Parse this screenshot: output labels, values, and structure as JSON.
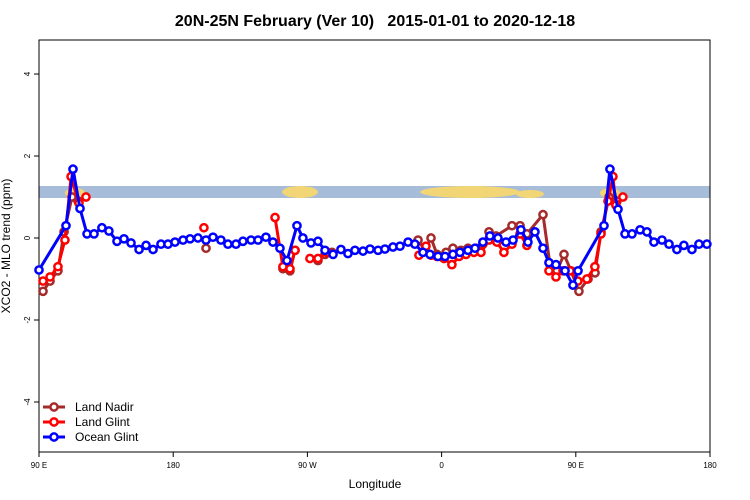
{
  "chart_data": {
    "type": "line",
    "title": "20N-25N February (Ver 10)   2015-01-01 to 2020-12-18",
    "x_label": "Longitude",
    "y_label": "XCO2 - MLO trend (ppm)",
    "xlim": [
      90,
      540
    ],
    "ylim": [
      -5.22,
      4.83
    ],
    "xticks": [
      {
        "value": 90,
        "label": "90 E"
      },
      180,
      {
        "value": 270,
        "label": "90 W"
      },
      {
        "value": 360,
        "label": "0"
      },
      {
        "value": 450,
        "label": "90 E"
      },
      {
        "value": 540,
        "label": "180"
      }
    ],
    "yticks": [
      4,
      2,
      0,
      -2,
      -4
    ],
    "legend": "bottom-left",
    "series": [
      {
        "name": "Land Nadir",
        "color": "#a52a2a",
        "x": [
          92.7,
          97.4,
          102.7,
          106.8,
          112.1,
          116.2,
          null,
          202,
          null,
          253.6,
          258.3,
          261.7,
          null,
          277.1,
          281.8,
          286.5,
          null,
          344.2,
          348.9,
          352.9,
          356.9,
          363,
          367.6,
          373,
          377.7,
          383,
          387.7,
          391.8,
          396.5,
          407.2,
          412.6,
          417.2,
          428,
          432.7,
          437.4,
          442.1,
          446.8,
          452.1,
          458.2,
          462.9,
          466.9,
          472.3,
          477.6
        ],
        "values": [
          -1.3,
          -1.05,
          -0.8,
          0.15,
          1.0,
          0.9,
          null,
          -0.25,
          null,
          -0.75,
          -0.8,
          -0.3,
          null,
          -0.55,
          -0.4,
          -0.35,
          null,
          -0.05,
          -0.3,
          0,
          -0.4,
          -0.35,
          -0.25,
          -0.3,
          -0.25,
          -0.25,
          -0.15,
          0.15,
          0.05,
          0.3,
          0.3,
          0.1,
          0.57,
          -0.65,
          -0.8,
          -0.4,
          -0.8,
          -1.3,
          -1.0,
          -0.85,
          0.15,
          1.0,
          0.9
        ]
      },
      {
        "name": "Land Glint",
        "color": "#ff0000",
        "x": [
          92.7,
          97.4,
          102.7,
          107.4,
          111.5,
          116.8,
          121.5,
          null,
          200.6,
          null,
          248.3,
          253.6,
          258.3,
          261.7,
          null,
          271.7,
          277.1,
          283.1,
          null,
          344.8,
          349.5,
          352.9,
          356.9,
          361.6,
          366.9,
          371.7,
          376.4,
          381.7,
          386.4,
          391.8,
          397.1,
          401.8,
          407.2,
          412.6,
          417.2,
          null,
          432,
          436.7,
          441.4,
          446.1,
          451.4,
          457.4,
          462.8,
          466.9,
          471.6,
          474.9,
          476.9,
          481.6
        ],
        "values": [
          -1.05,
          -0.95,
          -0.7,
          -0.05,
          1.5,
          0.85,
          1.0,
          null,
          0.25,
          null,
          0.5,
          -0.7,
          -0.75,
          -0.3,
          null,
          -0.5,
          -0.5,
          -0.35,
          null,
          -0.42,
          -0.2,
          -0.42,
          -0.45,
          -0.5,
          -0.65,
          -0.45,
          -0.4,
          -0.35,
          -0.35,
          -0.05,
          -0.1,
          -0.35,
          -0.15,
          0.1,
          -0.18,
          null,
          -0.8,
          -0.95,
          -0.8,
          -0.8,
          -1.05,
          -1.0,
          -0.7,
          0.1,
          0.9,
          1.5,
          0.8,
          1.0
        ]
      },
      {
        "name": "Ocean Glint",
        "color": "#0000ff",
        "x": [
          90,
          108.1,
          112.8,
          117.5,
          122.2,
          126.9,
          132.2,
          136.9,
          142.3,
          147,
          151.7,
          157.1,
          161.8,
          166.5,
          171.8,
          176.5,
          181.2,
          186.6,
          191.3,
          196.6,
          202,
          206.7,
          212,
          216.7,
          222.1,
          226.8,
          232.2,
          236.9,
          242.2,
          246.9,
          251.6,
          256.3,
          263,
          267,
          272.4,
          277.1,
          281.8,
          287.2,
          292.5,
          297.2,
          301.9,
          307.3,
          312,
          317.4,
          322,
          327.4,
          332.1,
          337.5,
          342.1,
          347.5,
          352.2,
          357.6,
          362.3,
          367.6,
          372.3,
          377.7,
          382.4,
          387.7,
          392.4,
          397.8,
          403.2,
          407.9,
          413.2,
          417.9,
          422.6,
          428,
          432,
          436.7,
          442.8,
          448.1,
          451.5,
          468.9,
          472.9,
          478.3,
          483,
          487.7,
          493.1,
          497.7,
          502.4,
          507.8,
          512.5,
          517.8,
          522.5,
          527.9,
          532.6,
          537.9
        ],
        "values": [
          -0.78,
          0.3,
          1.68,
          0.72,
          0.1,
          0.1,
          0.25,
          0.17,
          -0.08,
          -0.02,
          -0.12,
          -0.28,
          -0.18,
          -0.28,
          -0.15,
          -0.15,
          -0.1,
          -0.05,
          -0.02,
          0,
          -0.05,
          0.02,
          -0.05,
          -0.15,
          -0.15,
          -0.08,
          -0.05,
          -0.05,
          0.02,
          -0.1,
          -0.25,
          -0.55,
          0.3,
          0,
          -0.12,
          -0.08,
          -0.3,
          -0.4,
          -0.28,
          -0.38,
          -0.3,
          -0.32,
          -0.27,
          -0.3,
          -0.27,
          -0.22,
          -0.2,
          -0.1,
          -0.15,
          -0.35,
          -0.4,
          -0.45,
          -0.45,
          -0.4,
          -0.35,
          -0.3,
          -0.25,
          -0.1,
          0.05,
          0,
          -0.1,
          -0.05,
          0.2,
          -0.1,
          0.15,
          -0.25,
          -0.6,
          -0.65,
          -0.8,
          -1.15,
          -0.8,
          0.3,
          1.68,
          0.7,
          0.1,
          0.1,
          0.2,
          0.15,
          -0.1,
          -0.05,
          -0.15,
          -0.28,
          -0.18,
          -0.28,
          -0.15,
          -0.15
        ]
      }
    ]
  }
}
